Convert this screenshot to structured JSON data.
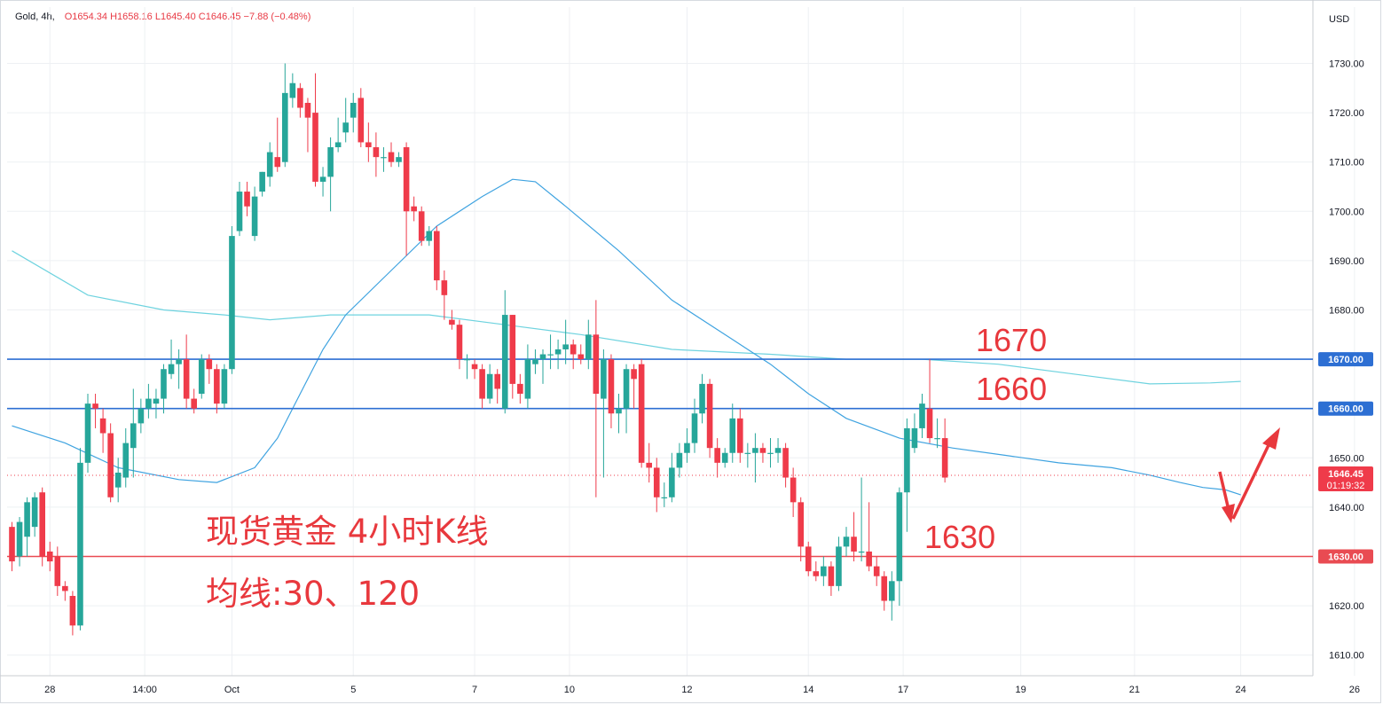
{
  "header": {
    "symbol": "Gold, 4h,",
    "ohlc": "O1654.34  H1658.16  L1645.40  C1646.45  −7.88 (−0.48%)",
    "currency": "USD"
  },
  "colors": {
    "up": "#26a69a",
    "down": "#ef3b4a",
    "ma30": "#3fa3e0",
    "ma120": "#6fd3df",
    "blue_line": "#2d6fd3",
    "red_line": "#e94b52",
    "annotation": "#e8383d",
    "grid": "#eef0f3"
  },
  "annotations": {
    "title": "现货黄金 4小时K线",
    "ma_note": "均线:30、120",
    "label_1670": "1670",
    "label_1660": "1660",
    "label_1630": "1630"
  },
  "price_labels": {
    "current": "1646.45",
    "countdown": "01:19:32",
    "level_1670": "1670.00",
    "level_1660": "1660.00",
    "level_1630": "1630.00"
  },
  "chart_data": {
    "type": "candlestick",
    "title": "Gold, 4h",
    "ylabel": "USD",
    "ylim": [
      1603,
      1740
    ],
    "y_ticks": [
      1610,
      1620,
      1630,
      1640,
      1650,
      1660,
      1670,
      1680,
      1690,
      1700,
      1710,
      1720,
      1730
    ],
    "x_tick_labels": [
      {
        "label": "28",
        "index": 5
      },
      {
        "label": "14:00",
        "index": 17.5
      },
      {
        "label": "Oct",
        "index": 29
      },
      {
        "label": "5",
        "index": 45
      },
      {
        "label": "7",
        "index": 61
      },
      {
        "label": "10",
        "index": 73.5
      },
      {
        "label": "12",
        "index": 89
      },
      {
        "label": "14",
        "index": 105
      },
      {
        "label": "17",
        "index": 117.5
      },
      {
        "label": "19",
        "index": 133
      },
      {
        "label": "21",
        "index": 148
      },
      {
        "label": "24",
        "index": 162
      },
      {
        "label": "26",
        "index": 177
      }
    ],
    "horizontal_levels": [
      {
        "value": 1670,
        "color": "blue"
      },
      {
        "value": 1660,
        "color": "blue"
      },
      {
        "value": 1630,
        "color": "red"
      }
    ],
    "current_price": 1646.45,
    "candles": [
      [
        1636,
        1629,
        1637,
        1627
      ],
      [
        1630,
        1637,
        1638,
        1628
      ],
      [
        1634,
        1641,
        1642,
        1630
      ],
      [
        1636,
        1642,
        1643,
        1634
      ],
      [
        1643,
        1630,
        1644,
        1628
      ],
      [
        1631,
        1629,
        1633,
        1627
      ],
      [
        1630,
        1624,
        1632,
        1622
      ],
      [
        1624,
        1623,
        1625,
        1621
      ],
      [
        1622,
        1616,
        1623,
        1614
      ],
      [
        1616,
        1649,
        1652,
        1615
      ],
      [
        1649,
        1661,
        1663,
        1647
      ],
      [
        1661,
        1660,
        1663,
        1656
      ],
      [
        1658,
        1655,
        1660,
        1651
      ],
      [
        1655,
        1642,
        1657,
        1641
      ],
      [
        1644,
        1647,
        1650,
        1641
      ],
      [
        1646,
        1653,
        1656,
        1644
      ],
      [
        1652,
        1657,
        1664,
        1646
      ],
      [
        1657,
        1660,
        1662,
        1655
      ],
      [
        1660,
        1662,
        1665,
        1658
      ],
      [
        1661,
        1662,
        1664,
        1658
      ],
      [
        1662,
        1668,
        1669,
        1659
      ],
      [
        1667,
        1669,
        1674,
        1666
      ],
      [
        1669,
        1670,
        1672,
        1664
      ],
      [
        1670,
        1662,
        1675,
        1660
      ],
      [
        1662,
        1660,
        1664,
        1659
      ],
      [
        1663,
        1670,
        1671,
        1662
      ],
      [
        1670,
        1668,
        1671,
        1665
      ],
      [
        1668,
        1661,
        1669,
        1659
      ],
      [
        1661,
        1668,
        1669,
        1660
      ],
      [
        1668,
        1695,
        1697,
        1667
      ],
      [
        1696,
        1704,
        1706,
        1695
      ],
      [
        1704,
        1701,
        1706,
        1699
      ],
      [
        1695,
        1703,
        1705,
        1694
      ],
      [
        1704,
        1708,
        1708,
        1703
      ],
      [
        1707,
        1712,
        1714,
        1705
      ],
      [
        1711,
        1709,
        1719,
        1708
      ],
      [
        1710,
        1724,
        1730,
        1709
      ],
      [
        1723,
        1726,
        1728,
        1721
      ],
      [
        1725,
        1721,
        1726,
        1719
      ],
      [
        1722,
        1719,
        1723,
        1712
      ],
      [
        1720,
        1706,
        1728,
        1705
      ],
      [
        1706,
        1707,
        1709,
        1703
      ],
      [
        1707,
        1713,
        1715,
        1700
      ],
      [
        1713,
        1714,
        1719,
        1712
      ],
      [
        1716,
        1718,
        1723,
        1714
      ],
      [
        1719,
        1722,
        1724,
        1716
      ],
      [
        1723,
        1714,
        1725,
        1713
      ],
      [
        1714,
        1713,
        1718,
        1710
      ],
      [
        1713,
        1711,
        1716,
        1707
      ],
      [
        1711,
        1711,
        1713,
        1708
      ],
      [
        1712,
        1710,
        1714,
        1709
      ],
      [
        1710,
        1711,
        1712,
        1709
      ],
      [
        1713,
        1700,
        1714,
        1691
      ],
      [
        1701,
        1700,
        1703,
        1698
      ],
      [
        1700,
        1694,
        1701,
        1693
      ],
      [
        1694,
        1696,
        1697,
        1693
      ],
      [
        1696,
        1686,
        1697,
        1684
      ],
      [
        1686,
        1683,
        1688,
        1678
      ],
      [
        1678,
        1677,
        1680,
        1676
      ],
      [
        1677,
        1670,
        1678,
        1668
      ],
      [
        1670,
        1670,
        1671,
        1666
      ],
      [
        1669,
        1668,
        1670,
        1666
      ],
      [
        1668,
        1662,
        1669,
        1660
      ],
      [
        1662,
        1667,
        1669,
        1661
      ],
      [
        1667,
        1664,
        1668,
        1661
      ],
      [
        1660,
        1679,
        1684,
        1659
      ],
      [
        1679,
        1665,
        1679,
        1662
      ],
      [
        1665,
        1663,
        1667,
        1661
      ],
      [
        1662,
        1670,
        1673,
        1660
      ],
      [
        1669,
        1670,
        1672,
        1667
      ],
      [
        1670,
        1671,
        1672,
        1665
      ],
      [
        1671,
        1671,
        1675,
        1668
      ],
      [
        1671,
        1672,
        1674,
        1668
      ],
      [
        1672,
        1673,
        1678,
        1669
      ],
      [
        1673,
        1671,
        1674,
        1668
      ],
      [
        1671,
        1670,
        1673,
        1669
      ],
      [
        1670,
        1675,
        1678,
        1668
      ],
      [
        1675,
        1663,
        1682,
        1642
      ],
      [
        1662,
        1670,
        1672,
        1646
      ],
      [
        1670,
        1659,
        1671,
        1656
      ],
      [
        1659,
        1660,
        1663,
        1655
      ],
      [
        1660,
        1668,
        1669,
        1655
      ],
      [
        1668,
        1666,
        1669,
        1660
      ],
      [
        1669,
        1649,
        1670,
        1648
      ],
      [
        1649,
        1648,
        1653,
        1645
      ],
      [
        1648,
        1642,
        1650,
        1639
      ],
      [
        1642,
        1642,
        1645,
        1640
      ],
      [
        1642,
        1648,
        1651,
        1641
      ],
      [
        1648,
        1651,
        1653,
        1646
      ],
      [
        1651,
        1653,
        1656,
        1649
      ],
      [
        1653,
        1659,
        1662,
        1651
      ],
      [
        1659,
        1665,
        1667,
        1657
      ],
      [
        1665,
        1652,
        1666,
        1650
      ],
      [
        1652,
        1649,
        1654,
        1646
      ],
      [
        1649,
        1651,
        1652,
        1648
      ],
      [
        1651,
        1658,
        1661,
        1649
      ],
      [
        1658,
        1651,
        1660,
        1649
      ],
      [
        1651,
        1651,
        1653,
        1648
      ],
      [
        1651,
        1652,
        1655,
        1645
      ],
      [
        1652,
        1651,
        1653,
        1649
      ],
      [
        1651,
        1651,
        1654,
        1648
      ],
      [
        1651,
        1652,
        1654,
        1649
      ],
      [
        1652,
        1646,
        1653,
        1644
      ],
      [
        1646,
        1641,
        1648,
        1638
      ],
      [
        1641,
        1632,
        1642,
        1629
      ],
      [
        1632,
        1627,
        1633,
        1626
      ],
      [
        1627,
        1626,
        1629,
        1625
      ],
      [
        1626,
        1628,
        1630,
        1624
      ],
      [
        1628,
        1624,
        1629,
        1622
      ],
      [
        1624,
        1632,
        1634,
        1623
      ],
      [
        1632,
        1634,
        1636,
        1630
      ],
      [
        1634,
        1631,
        1639,
        1629
      ],
      [
        1631,
        1631,
        1646,
        1629
      ],
      [
        1631,
        1628,
        1641,
        1627
      ],
      [
        1628,
        1626,
        1630,
        1624
      ],
      [
        1626,
        1621,
        1627,
        1619
      ],
      [
        1621,
        1625,
        1627,
        1617
      ],
      [
        1625,
        1643,
        1644,
        1620
      ],
      [
        1643,
        1656,
        1658,
        1635
      ],
      [
        1652,
        1656,
        1659,
        1651
      ],
      [
        1656,
        1661,
        1663,
        1654
      ],
      [
        1660,
        1654,
        1670,
        1653
      ],
      [
        1654,
        1654,
        1658,
        1652
      ],
      [
        1654,
        1646,
        1658,
        1645
      ]
    ],
    "ma30": [
      [
        0,
        1656.5
      ],
      [
        7,
        1653
      ],
      [
        14,
        1648
      ],
      [
        22,
        1645.6
      ],
      [
        27,
        1645
      ],
      [
        32,
        1648
      ],
      [
        35,
        1654
      ],
      [
        38,
        1663
      ],
      [
        41,
        1672
      ],
      [
        44,
        1679
      ],
      [
        50,
        1688
      ],
      [
        56,
        1697
      ],
      [
        62,
        1703
      ],
      [
        66,
        1706.5
      ],
      [
        69,
        1706
      ],
      [
        73,
        1701
      ],
      [
        80,
        1692
      ],
      [
        87,
        1682
      ],
      [
        93,
        1676
      ],
      [
        100,
        1669
      ],
      [
        105,
        1663
      ],
      [
        110,
        1658
      ],
      [
        117,
        1654
      ],
      [
        124,
        1652
      ],
      [
        131,
        1650.5
      ],
      [
        138,
        1649
      ],
      [
        145,
        1648
      ],
      [
        150,
        1646.5
      ],
      [
        154,
        1645
      ],
      [
        157,
        1644
      ],
      [
        160,
        1643.5
      ],
      [
        162,
        1642.5
      ]
    ],
    "ma120": [
      [
        0,
        1692
      ],
      [
        10,
        1683
      ],
      [
        20,
        1680
      ],
      [
        28,
        1679
      ],
      [
        34,
        1678
      ],
      [
        42,
        1679
      ],
      [
        55,
        1679
      ],
      [
        65,
        1677
      ],
      [
        75,
        1675
      ],
      [
        87,
        1672
      ],
      [
        100,
        1671
      ],
      [
        110,
        1670
      ],
      [
        120,
        1670
      ],
      [
        130,
        1669
      ],
      [
        140,
        1667
      ],
      [
        150,
        1665
      ],
      [
        158,
        1665.2
      ],
      [
        162,
        1665.5
      ]
    ]
  }
}
